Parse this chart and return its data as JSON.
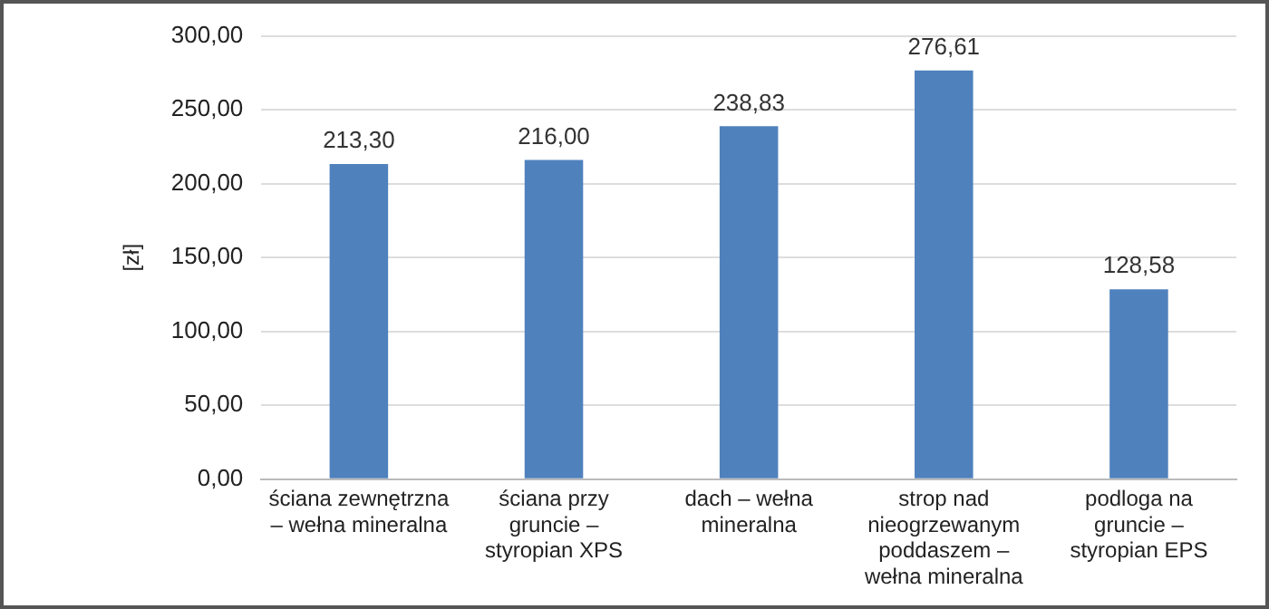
{
  "chart_data": {
    "type": "bar",
    "ylabel": "[zł]",
    "categories": [
      "ściana zewnętrzna – wełna mineralna",
      "ściana przy gruncie – styropian XPS",
      "dach – wełna mineralna",
      "strop nad nieogrzewanym poddaszem – wełna mineralna",
      "podloga na gruncie – styropian EPS"
    ],
    "values": [
      213.3,
      216.0,
      238.83,
      276.61,
      128.58
    ],
    "value_labels": [
      "213,30",
      "216,00",
      "238,83",
      "276,61",
      "128,58"
    ],
    "color": "#4f81bd",
    "ylim": [
      0,
      300
    ],
    "yticks": [
      {
        "value": 0,
        "label": "0,00"
      },
      {
        "value": 50,
        "label": "50,00"
      },
      {
        "value": 100,
        "label": "100,00"
      },
      {
        "value": 150,
        "label": "150,00"
      },
      {
        "value": 200,
        "label": "200,00"
      },
      {
        "value": 250,
        "label": "250,00"
      },
      {
        "value": 300,
        "label": "300,00"
      }
    ],
    "grid": "y",
    "legend": false
  }
}
